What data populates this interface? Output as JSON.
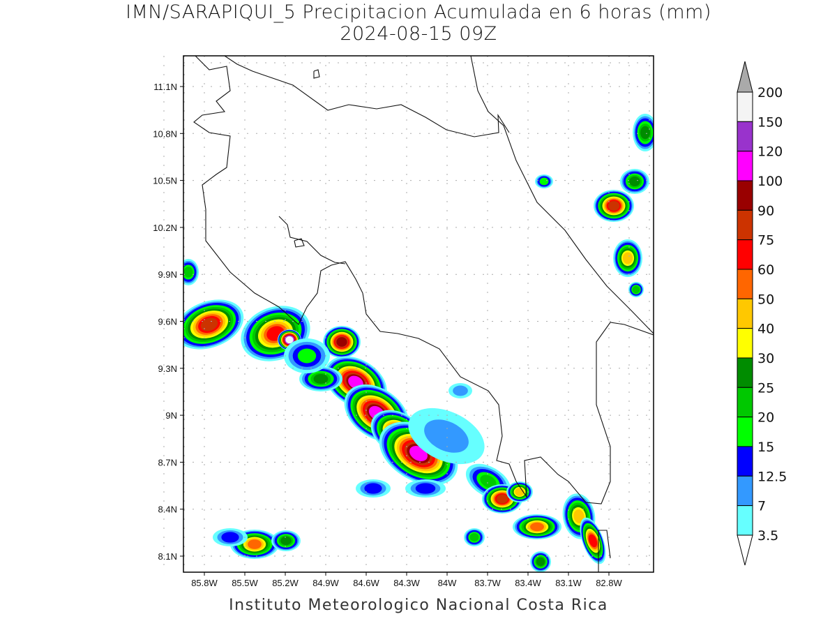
{
  "title_line1": "IMN/SARAPIQUI_5 Precipitacion Acumulada en 6 horas (mm)",
  "title_line2": "2024-08-15 09Z",
  "footer": "Instituto Meteorologico Nacional Costa Rica",
  "map": {
    "type": "filled-contour precipitation map",
    "lon_ticks": [
      "85.8W",
      "85.5W",
      "85.2W",
      "84.9W",
      "84.6W",
      "84.3W",
      "84W",
      "83.7W",
      "83.4W",
      "83.1W",
      "82.8W"
    ],
    "lat_ticks": [
      "11.1N",
      "10.8N",
      "10.5N",
      "10.2N",
      "9.9N",
      "9.6N",
      "9.3N",
      "9N",
      "8.7N",
      "8.4N",
      "8.1N"
    ],
    "grid": "dotted"
  },
  "colorbar": {
    "labels": [
      "200",
      "150",
      "120",
      "100",
      "90",
      "75",
      "60",
      "50",
      "40",
      "30",
      "25",
      "20",
      "15",
      "12.5",
      "7",
      "3.5"
    ],
    "colors_top_to_bottom": [
      "#f4f4f4",
      "#9933cc",
      "#ff00ff",
      "#990000",
      "#cc3300",
      "#ff0000",
      "#ff6600",
      "#ffc800",
      "#ffff00",
      "#008c00",
      "#00c800",
      "#00ff00",
      "#0000ff",
      "#3399ff",
      "#66ffff"
    ],
    "over_color": "#aaaaaa",
    "under_color": "#ffffff"
  }
}
